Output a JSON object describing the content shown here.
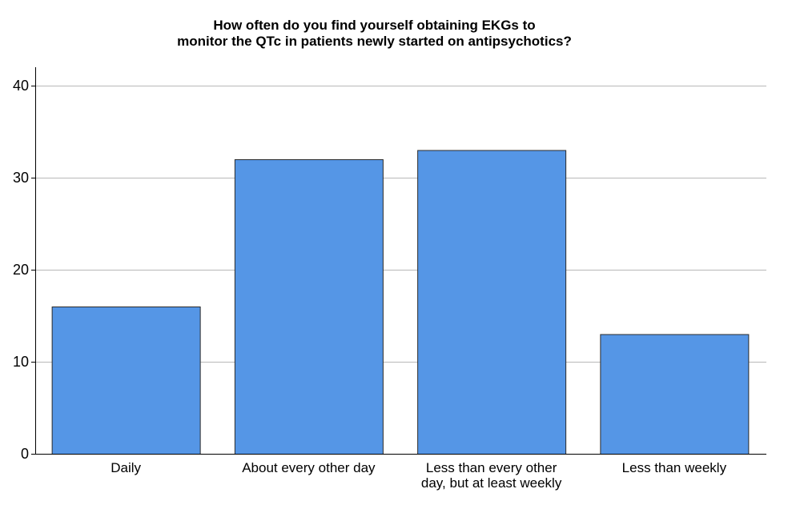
{
  "chart_data": {
    "type": "bar",
    "title_lines": [
      "How often do you find yourself obtaining EKGs to",
      "monitor the QTc in patients newly started on antipsychotics?"
    ],
    "categories": [
      [
        "Daily"
      ],
      [
        "About every other day"
      ],
      [
        "Less than every other",
        "day, but at least weekly"
      ],
      [
        "Less than weekly"
      ]
    ],
    "values": [
      16,
      32,
      33,
      13
    ],
    "ylim": [
      0,
      42
    ],
    "yticks": [
      0,
      10,
      20,
      30,
      40
    ],
    "grid": true,
    "colors": {
      "bar_fill": "#5596e6",
      "bar_stroke": "#2b2b2b",
      "grid": "#b8b8b8",
      "axis": "#000000"
    }
  }
}
